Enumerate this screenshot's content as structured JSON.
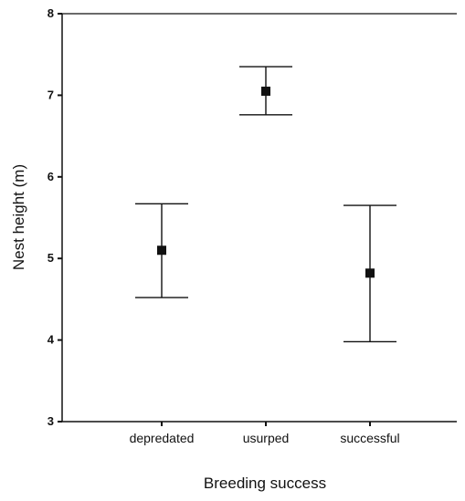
{
  "chart_data": {
    "type": "scatter",
    "title": "",
    "xlabel": "Breeding success",
    "ylabel": "Nest height (m)",
    "categories": [
      "depredated",
      "usurped",
      "successful"
    ],
    "series": [
      {
        "values": [
          5.1,
          7.05,
          4.82
        ],
        "error_low": [
          4.52,
          6.76,
          3.98
        ],
        "error_high": [
          5.67,
          7.35,
          5.65
        ]
      }
    ],
    "ylim": [
      3,
      8
    ],
    "yticks": [
      "3",
      "4",
      "5",
      "6",
      "7",
      "8"
    ],
    "grid": false,
    "legend": "none",
    "colors": {
      "marker": "#111111",
      "axis": "#111111"
    }
  }
}
